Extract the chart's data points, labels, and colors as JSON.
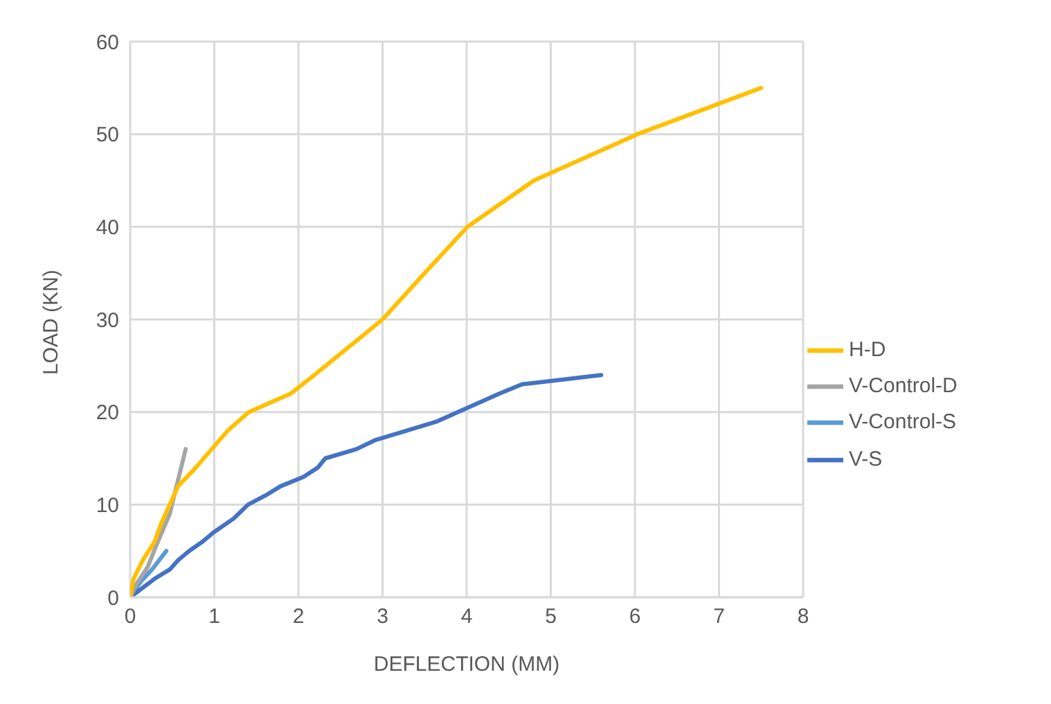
{
  "chart_data": {
    "type": "line",
    "xlabel": "DEFLECTION (MM)",
    "ylabel": "LOAD (KN)",
    "xlim": [
      0,
      8
    ],
    "xticks": [
      0,
      1,
      2,
      3,
      4,
      5,
      6,
      7,
      8
    ],
    "ylim": [
      0,
      60
    ],
    "yticks": [
      0,
      10,
      20,
      30,
      40,
      50,
      60
    ],
    "grid": true,
    "legend": "right",
    "marker": "none",
    "line_style": "solid",
    "series": [
      {
        "name": "V-Control-S",
        "color": "#5b9bd5",
        "x": [
          0,
          0.13,
          0.26,
          0.43
        ],
        "values": [
          0,
          1.75,
          3,
          5
        ]
      },
      {
        "name": "V-S",
        "color": "#4472c4",
        "x": [
          0,
          0.29,
          0.47,
          0.57,
          0.7,
          0.86,
          0.99,
          1.23,
          1.4,
          1.61,
          1.79,
          2.06,
          2.23,
          2.32,
          2.69,
          2.92,
          3.29,
          3.65,
          4.02,
          4.39,
          4.66,
          5.6
        ],
        "values": [
          0,
          2,
          3,
          4,
          5,
          6,
          7,
          8.5,
          10,
          11,
          12,
          13,
          14,
          15,
          16,
          17,
          18,
          19,
          20.5,
          22,
          23,
          24
        ]
      },
      {
        "name": "V-Control-D",
        "color": "#a5a5a5",
        "x": [
          0,
          0.08,
          0.21,
          0.32,
          0.47,
          0.66
        ],
        "values": [
          0,
          1.5,
          3.3,
          5.8,
          9,
          16
        ]
      },
      {
        "name": "H-D",
        "color": "#ffc000",
        "x": [
          0,
          0.04,
          0.15,
          0.29,
          0.37,
          0.47,
          0.57,
          0.78,
          0.97,
          1.16,
          1.41,
          1.91,
          2.19,
          3.0,
          3.5,
          4.01,
          4.8,
          6.03,
          7.5
        ],
        "values": [
          0,
          2,
          4,
          6,
          8,
          10,
          12,
          14,
          16,
          18,
          20,
          22,
          24,
          30,
          35,
          40,
          45,
          50,
          55
        ]
      }
    ]
  }
}
